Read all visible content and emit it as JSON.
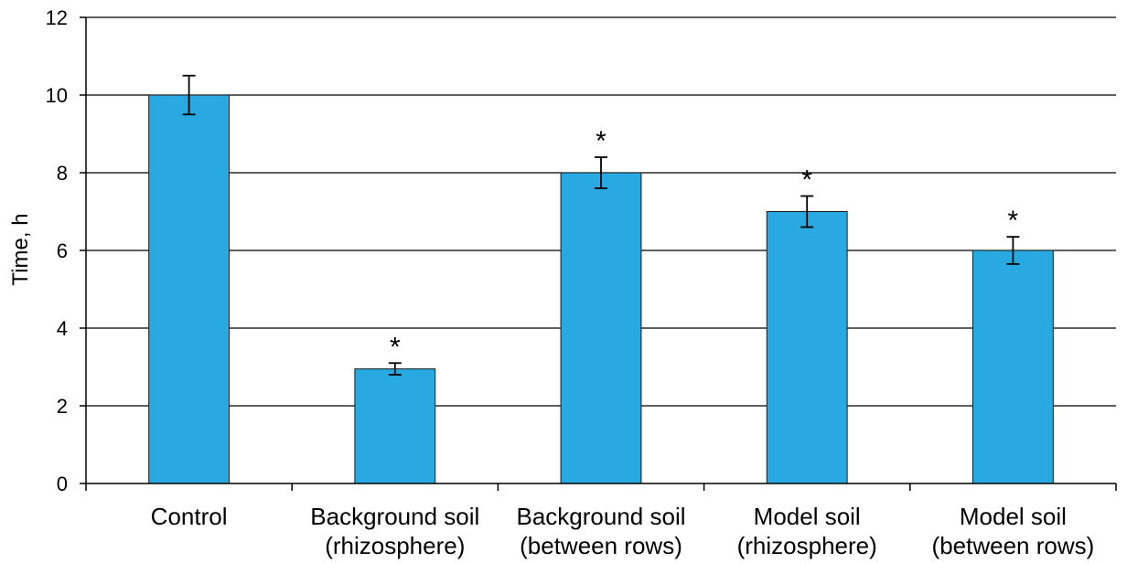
{
  "chart_data": {
    "type": "bar",
    "categories": [
      [
        "Control"
      ],
      [
        "Background soil",
        "(rhizosphere)"
      ],
      [
        "Background soil",
        "(between rows)"
      ],
      [
        "Model soil",
        "(rhizosphere)"
      ],
      [
        "Model soil",
        "(between rows)"
      ]
    ],
    "values": [
      10,
      2.95,
      8,
      7,
      6
    ],
    "errors": [
      0.5,
      0.15,
      0.4,
      0.4,
      0.35
    ],
    "significance_markers": [
      "",
      "*",
      "*",
      "*",
      "*"
    ],
    "ylabel": "Time, h",
    "ylim": [
      0,
      12
    ],
    "yticks": [
      0,
      2,
      4,
      6,
      8,
      10,
      12
    ],
    "grid": true,
    "bar_color": "#29a9e1",
    "bar_edge_color": "#1a1a1a"
  }
}
